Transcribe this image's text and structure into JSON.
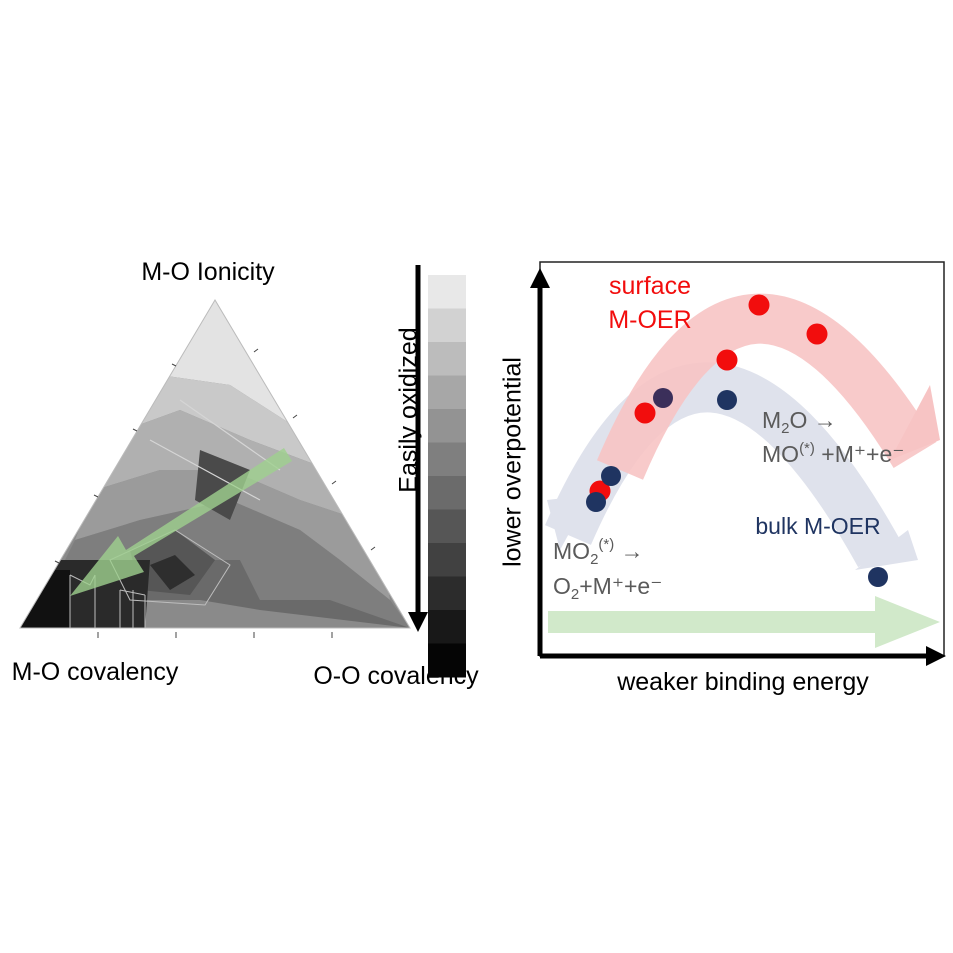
{
  "ternary": {
    "top_label": "M-O Ionicity",
    "left_label": "M-O covalency",
    "right_label": "O-O covalency",
    "arrow_color": "#9fd18f"
  },
  "colorbar": {
    "label": "Easily oxidized",
    "levels": [
      "#e8e8e8",
      "#d2d2d2",
      "#bcbcbc",
      "#a7a7a7",
      "#939393",
      "#7f7f7f",
      "#6b6b6b",
      "#565656",
      "#414141",
      "#2c2c2c",
      "#181818",
      "#050505"
    ]
  },
  "volcano": {
    "x_axis_label": "weaker binding energy",
    "y_axis_label": "lower overpotential",
    "surface_label_line1": "surface",
    "surface_label_line2": "M-OER",
    "surface_color": "#f20d0d",
    "bulk_label": "bulk M-OER",
    "bulk_color": "#1f3461",
    "reaction1": {
      "line1_pre": "M",
      "line1_sub": "2",
      "line1_post": "O →",
      "line2_pre": "MO",
      "line2_sup": "(*)",
      "line2_post": " +M⁺+e⁻"
    },
    "reaction2": {
      "line1_pre": "MO",
      "line1_sub": "2",
      "line1_sup": "(*)",
      "line1_post": " →",
      "line2_pre": "O",
      "line2_sub": "2",
      "line2_post": "+M⁺+e⁻"
    },
    "surface_points": [
      {
        "name": "surface-point-1",
        "color": "#f20d0d"
      },
      {
        "name": "surface-point-2",
        "color": "#f20d0d"
      },
      {
        "name": "surface-point-3",
        "color": "#f20d0d"
      },
      {
        "name": "surface-point-4",
        "color": "#f20d0d"
      },
      {
        "name": "surface-point-5",
        "color": "#f20d0d"
      }
    ],
    "bulk_points": [
      {
        "name": "bulk-point-1",
        "color": "#1f3461"
      },
      {
        "name": "bulk-point-2",
        "color": "#1f3461"
      },
      {
        "name": "bulk-point-3",
        "color": "#1f3461"
      },
      {
        "name": "bulk-point-4",
        "color": "#1f3461"
      },
      {
        "name": "bulk-point-5",
        "color": "#1f3461"
      }
    ]
  }
}
